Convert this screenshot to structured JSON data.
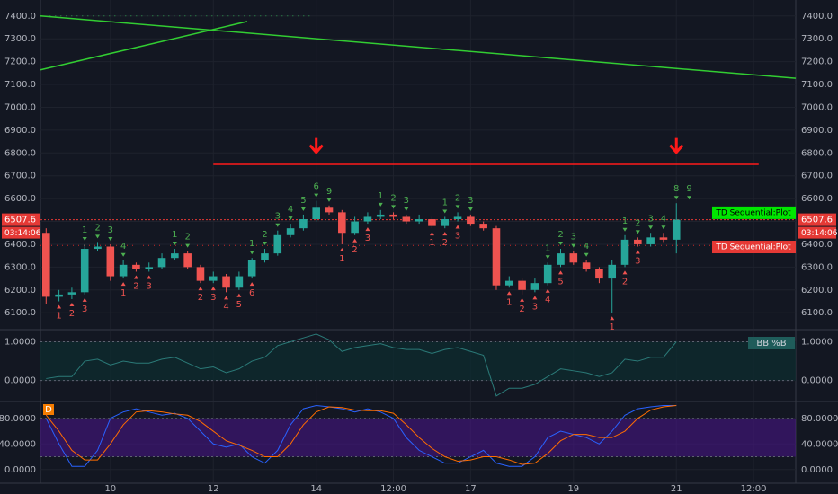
{
  "chart_data": [
    {
      "type": "candlestick",
      "xlim": [
        8.64,
        23.32
      ],
      "xticks": [
        {
          "value": 10,
          "label": "10"
        },
        {
          "value": 12,
          "label": "12"
        },
        {
          "value": 14,
          "label": "14"
        },
        {
          "value": 15.5,
          "label": "12:00"
        },
        {
          "value": 17,
          "label": "17"
        },
        {
          "value": 19,
          "label": "19"
        },
        {
          "value": 21,
          "label": "21"
        },
        {
          "value": 22.5,
          "label": "12:00"
        }
      ],
      "ylim": [
        6030,
        7470
      ],
      "yticks": [
        {
          "value": 6100,
          "label": "6100.0"
        },
        {
          "value": 6200,
          "label": "6200.0"
        },
        {
          "value": 6300,
          "label": "6300.0"
        },
        {
          "value": 6400,
          "label": "6400.0"
        },
        {
          "value": 6500,
          "label": "6500.0"
        },
        {
          "value": 6600,
          "label": "6600.0"
        },
        {
          "value": 6700,
          "label": "6700.0"
        },
        {
          "value": 6800,
          "label": "6800.0"
        },
        {
          "value": 6900,
          "label": "6900.0"
        },
        {
          "value": 7000,
          "label": "7000.0"
        },
        {
          "value": 7100,
          "label": "7100.0"
        },
        {
          "value": 7200,
          "label": "7200.0"
        },
        {
          "value": 7300,
          "label": "7300.0"
        },
        {
          "value": 7400,
          "label": "7400.0"
        }
      ],
      "x": [
        8.75,
        9,
        9.25,
        9.5,
        9.75,
        10,
        10.25,
        10.5,
        10.75,
        11,
        11.25,
        11.5,
        11.75,
        12,
        12.25,
        12.5,
        12.75,
        13,
        13.25,
        13.5,
        13.75,
        14,
        14.25,
        14.5,
        14.75,
        15,
        15.25,
        15.5,
        15.75,
        16,
        16.25,
        16.5,
        16.75,
        17,
        17.25,
        17.5,
        17.75,
        18,
        18.25,
        18.5,
        18.75,
        19,
        19.25,
        19.5,
        19.75,
        20,
        20.25,
        20.5,
        20.75,
        21
      ],
      "open": [
        6450,
        6170,
        6180,
        6190,
        6380,
        6390,
        6260,
        6310,
        6290,
        6300,
        6340,
        6360,
        6300,
        6240,
        6260,
        6210,
        6260,
        6330,
        6360,
        6440,
        6470,
        6510,
        6560,
        6540,
        6450,
        6500,
        6520,
        6530,
        6520,
        6500,
        6510,
        6480,
        6510,
        6520,
        6490,
        6470,
        6220,
        6240,
        6200,
        6230,
        6310,
        6360,
        6320,
        6290,
        6250,
        6310,
        6420,
        6400,
        6430,
        6420
      ],
      "high": [
        6470,
        6200,
        6210,
        6400,
        6410,
        6400,
        6330,
        6320,
        6320,
        6360,
        6380,
        6370,
        6310,
        6280,
        6270,
        6280,
        6340,
        6380,
        6460,
        6490,
        6530,
        6590,
        6570,
        6550,
        6520,
        6540,
        6550,
        6540,
        6530,
        6530,
        6520,
        6520,
        6540,
        6530,
        6500,
        6480,
        6260,
        6250,
        6250,
        6320,
        6380,
        6370,
        6330,
        6300,
        6330,
        6440,
        6430,
        6450,
        6450,
        6580
      ],
      "low": [
        6140,
        6150,
        6160,
        6180,
        6370,
        6240,
        6250,
        6280,
        6280,
        6290,
        6330,
        6290,
        6230,
        6230,
        6190,
        6200,
        6250,
        6320,
        6350,
        6430,
        6460,
        6500,
        6530,
        6400,
        6440,
        6490,
        6510,
        6510,
        6490,
        6490,
        6470,
        6470,
        6500,
        6480,
        6460,
        6200,
        6210,
        6180,
        6190,
        6220,
        6300,
        6310,
        6280,
        6230,
        6100,
        6300,
        6390,
        6390,
        6410,
        6360
      ],
      "close": [
        6170,
        6180,
        6190,
        6380,
        6390,
        6260,
        6310,
        6290,
        6300,
        6340,
        6360,
        6300,
        6240,
        6260,
        6210,
        6260,
        6330,
        6360,
        6440,
        6470,
        6510,
        6560,
        6540,
        6450,
        6500,
        6520,
        6530,
        6520,
        6500,
        6510,
        6480,
        6510,
        6520,
        6490,
        6470,
        6220,
        6240,
        6200,
        6230,
        6310,
        6360,
        6320,
        6290,
        6250,
        6310,
        6420,
        6400,
        6430,
        6420,
        6508
      ],
      "up_color": "#26a69a",
      "down_color": "#ef5350",
      "trendlines": [
        {
          "x": [
            8.64,
            23.32
          ],
          "y": [
            7400,
            7127
          ],
          "color": "#32cd32"
        },
        {
          "x": [
            8.64,
            12.66
          ],
          "y": [
            7164,
            7376
          ],
          "color": "#32cd32"
        }
      ],
      "levels": [
        {
          "x": [
            12,
            22.6
          ],
          "y": 6750,
          "color": "#ff1a1a",
          "dashed": false
        },
        {
          "x": [
            8.82,
            13.9
          ],
          "y": 7400,
          "color": "#2e9e4f",
          "dashed": true
        },
        {
          "x": [
            8.64,
            23.32
          ],
          "y": 6395,
          "color": "#c62828",
          "dashed": true
        }
      ],
      "arrows": {
        "x": [
          14,
          21
        ],
        "y": 6830,
        "color": "#ff1a1a"
      },
      "setup_buy": {
        "x": [
          9,
          9.25,
          9.5,
          10.25,
          10.5,
          10.75,
          11.75,
          12,
          12.25,
          12.5,
          12.75,
          14.5,
          14.75,
          15,
          16.25,
          16.5,
          16.75,
          17.75,
          18,
          18.25,
          18.5,
          18.75,
          19.75,
          20,
          20.25
        ],
        "counts": [
          1,
          2,
          3,
          1,
          2,
          3,
          2,
          3,
          4,
          5,
          6,
          1,
          2,
          3,
          1,
          2,
          3,
          1,
          2,
          3,
          4,
          5,
          1,
          2,
          3
        ],
        "color": "#ef5350"
      },
      "setup_sell": {
        "x": [
          9.5,
          9.75,
          10,
          10.25,
          11.25,
          11.5,
          12.75,
          13,
          13.25,
          13.5,
          13.75,
          14,
          14.25,
          15.25,
          15.5,
          15.75,
          16.5,
          16.75,
          17,
          18.5,
          18.75,
          19,
          19.25,
          20,
          20.25,
          20.5,
          20.75,
          21,
          21.25
        ],
        "counts": [
          1,
          2,
          3,
          4,
          1,
          2,
          1,
          2,
          3,
          4,
          5,
          6,
          9,
          1,
          2,
          3,
          1,
          2,
          3,
          1,
          2,
          3,
          4,
          1,
          2,
          3,
          4,
          8,
          9
        ],
        "color": "#4caf50"
      },
      "last_price": {
        "value": 6507.6,
        "countdown": "03:14:06",
        "color": "#e53935"
      },
      "plot_labels": [
        {
          "label": "TD Sequential:Plot",
          "value": 6538,
          "color": "#00e600"
        },
        {
          "label": "TD Sequential:Plot",
          "value": 6388,
          "color": "#e53935"
        }
      ]
    },
    {
      "type": "line",
      "title": "BB %B",
      "ylim": [
        -0.52,
        1.29
      ],
      "yticks": [
        {
          "value": 0,
          "label": "0.0000"
        },
        {
          "value": 1,
          "label": "1.0000"
        }
      ],
      "band": [
        0,
        1
      ],
      "x": [
        8.75,
        9,
        9.25,
        9.5,
        9.75,
        10,
        10.25,
        10.5,
        10.75,
        11,
        11.25,
        11.5,
        11.75,
        12,
        12.25,
        12.5,
        12.75,
        13,
        13.25,
        13.5,
        13.75,
        14,
        14.25,
        14.5,
        14.75,
        15,
        15.25,
        15.5,
        15.75,
        16,
        16.25,
        16.5,
        16.75,
        17,
        17.25,
        17.5,
        17.75,
        18,
        18.25,
        18.5,
        18.75,
        19,
        19.25,
        19.5,
        19.75,
        20,
        20.25,
        20.5,
        20.75,
        21
      ],
      "series": [
        {
          "color": "#2b7a78",
          "values": [
            0.05,
            0.1,
            0.1,
            0.5,
            0.55,
            0.4,
            0.5,
            0.45,
            0.45,
            0.55,
            0.6,
            0.45,
            0.3,
            0.35,
            0.2,
            0.3,
            0.5,
            0.6,
            0.9,
            1.0,
            1.1,
            1.2,
            1.05,
            0.75,
            0.85,
            0.9,
            0.95,
            0.85,
            0.8,
            0.8,
            0.7,
            0.8,
            0.85,
            0.75,
            0.65,
            -0.4,
            -0.2,
            -0.2,
            -0.1,
            0.1,
            0.3,
            0.25,
            0.2,
            0.1,
            0.2,
            0.55,
            0.5,
            0.6,
            0.6,
            1.0
          ]
        }
      ]
    },
    {
      "type": "line",
      "title": "D",
      "ylim": [
        -20,
        105
      ],
      "yticks": [
        {
          "value": 0,
          "label": "0.0000"
        },
        {
          "value": 40,
          "label": "40.0000"
        },
        {
          "value": 80,
          "label": "80.0000"
        }
      ],
      "band": [
        20,
        80
      ],
      "x": [
        8.75,
        9,
        9.25,
        9.5,
        9.75,
        10,
        10.25,
        10.5,
        10.75,
        11,
        11.25,
        11.5,
        11.75,
        12,
        12.25,
        12.5,
        12.75,
        13,
        13.25,
        13.5,
        13.75,
        14,
        14.25,
        14.5,
        14.75,
        15,
        15.25,
        15.5,
        15.75,
        16,
        16.25,
        16.5,
        16.75,
        17,
        17.25,
        17.5,
        17.75,
        18,
        18.25,
        18.5,
        18.75,
        19,
        19.25,
        19.5,
        19.75,
        20,
        20.25,
        20.5,
        20.75,
        21
      ],
      "series": [
        {
          "color": "#2962ff",
          "values": [
            80,
            40,
            5,
            5,
            30,
            80,
            90,
            95,
            90,
            85,
            88,
            80,
            60,
            40,
            35,
            40,
            20,
            10,
            30,
            70,
            95,
            100,
            98,
            95,
            90,
            95,
            90,
            80,
            50,
            30,
            20,
            10,
            10,
            20,
            30,
            10,
            5,
            5,
            20,
            50,
            60,
            55,
            50,
            40,
            60,
            85,
            95,
            98,
            100,
            100
          ]
        },
        {
          "color": "#ff6d00",
          "values": [
            85,
            60,
            30,
            15,
            15,
            40,
            70,
            90,
            92,
            90,
            87,
            85,
            75,
            60,
            45,
            38,
            30,
            20,
            20,
            40,
            70,
            90,
            98,
            97,
            93,
            92,
            92,
            88,
            70,
            50,
            33,
            20,
            13,
            15,
            20,
            20,
            15,
            8,
            10,
            25,
            45,
            55,
            55,
            50,
            50,
            60,
            80,
            93,
            98,
            100
          ]
        }
      ]
    }
  ]
}
